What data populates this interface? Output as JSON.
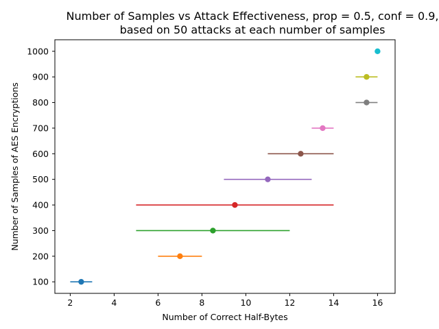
{
  "chart_data": {
    "type": "scatter",
    "title_lines": [
      "Number of Samples vs Attack Effectiveness, prop = 0.5, conf = 0.9,",
      "based on 50 attacks at each number of samples"
    ],
    "xlabel": "Number of Correct Half-Bytes",
    "ylabel": "Number of Samples of AES Encryptions",
    "xlim": [
      1.3,
      16.8
    ],
    "ylim": [
      55,
      1045
    ],
    "xticks": [
      2,
      4,
      6,
      8,
      10,
      12,
      14,
      16
    ],
    "yticks": [
      100,
      200,
      300,
      400,
      500,
      600,
      700,
      800,
      900,
      1000
    ],
    "grid": false,
    "points": [
      {
        "y": 100,
        "x": 2.5,
        "xmin": 2.0,
        "xmax": 3.0,
        "color": "#1f77b4"
      },
      {
        "y": 200,
        "x": 7.0,
        "xmin": 6.0,
        "xmax": 8.0,
        "color": "#ff7f0e"
      },
      {
        "y": 300,
        "x": 8.5,
        "xmin": 5.0,
        "xmax": 12.0,
        "color": "#2ca02c"
      },
      {
        "y": 400,
        "x": 9.5,
        "xmin": 5.0,
        "xmax": 14.0,
        "color": "#d62728"
      },
      {
        "y": 500,
        "x": 11.0,
        "xmin": 9.0,
        "xmax": 13.0,
        "color": "#9467bd"
      },
      {
        "y": 600,
        "x": 12.5,
        "xmin": 11.0,
        "xmax": 14.0,
        "color": "#8c564b"
      },
      {
        "y": 700,
        "x": 13.5,
        "xmin": 13.0,
        "xmax": 14.0,
        "color": "#e377c2"
      },
      {
        "y": 800,
        "x": 15.5,
        "xmin": 15.0,
        "xmax": 16.0,
        "color": "#7f7f7f"
      },
      {
        "y": 900,
        "x": 15.5,
        "xmin": 15.0,
        "xmax": 16.0,
        "color": "#bcbd22"
      },
      {
        "y": 1000,
        "x": 16.0,
        "xmin": 16.0,
        "xmax": 16.0,
        "color": "#17becf"
      }
    ]
  }
}
